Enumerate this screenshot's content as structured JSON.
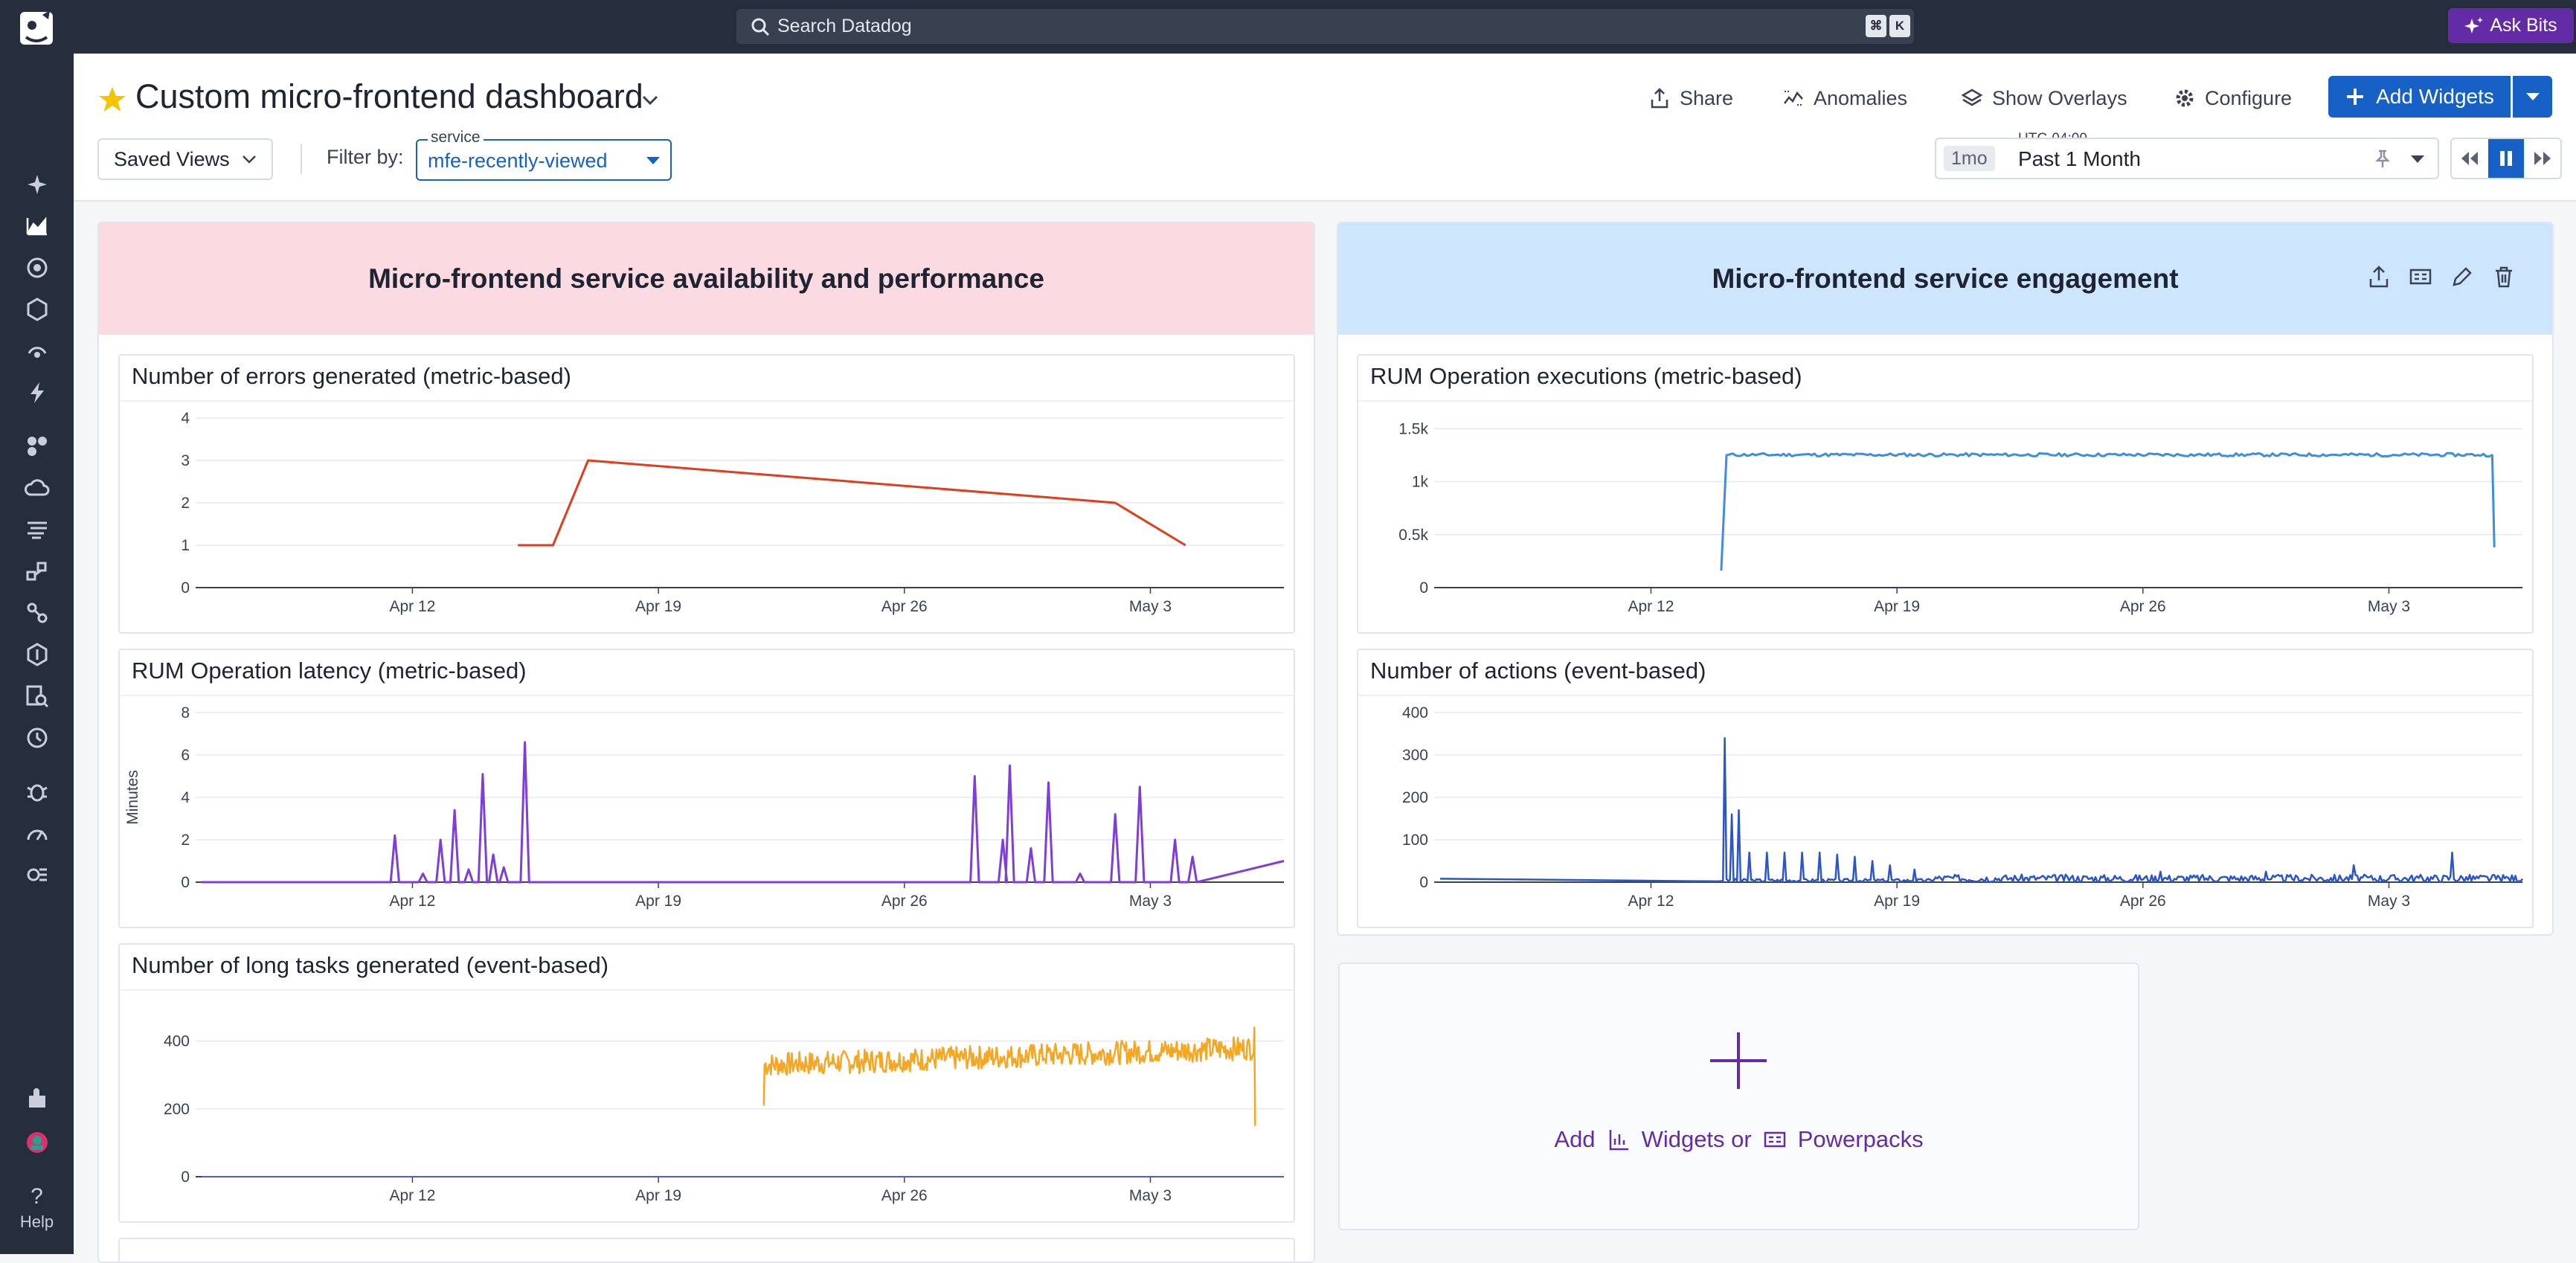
{
  "topbar": {
    "search_placeholder": "Search Datadog",
    "kbd_cmd": "⌘",
    "kbd_k": "K",
    "ask_bits": "Ask Bits"
  },
  "nav": {
    "help": "Help"
  },
  "header": {
    "title": "Custom micro-frontend dashboard",
    "share": "Share",
    "anomalies": "Anomalies",
    "show_overlays": "Show Overlays",
    "configure": "Configure",
    "add_widgets": "Add Widgets",
    "saved_views": "Saved Views",
    "filter_by": "Filter by:",
    "filter_legend": "service",
    "filter_value": "mfe-recently-viewed",
    "timezone": "UTC-04:00",
    "time_chip": "1mo",
    "time_value": "Past 1 Month"
  },
  "colors": {
    "group_left_header": "#fcdae2",
    "group_right_header": "#cde6fd",
    "accent": "#1660c6",
    "purple": "#632ca6"
  },
  "groups": {
    "left": {
      "title": "Micro-frontend service availability and performance"
    },
    "right": {
      "title": "Micro-frontend service engagement"
    }
  },
  "widgets": {
    "errors": {
      "title": "Number of errors generated (metric-based)"
    },
    "latency": {
      "title": "RUM Operation latency (metric-based)",
      "ylabel": "Minutes"
    },
    "longtasks": {
      "title": "Number of long tasks generated (event-based)"
    },
    "executions": {
      "title": "RUM Operation executions (metric-based)"
    },
    "actions": {
      "title": "Number of actions (event-based)"
    }
  },
  "add_placeholder": {
    "add": "Add",
    "widgets": "Widgets or",
    "powerpacks": "Powerpacks"
  },
  "chart_data": [
    {
      "id": "errors",
      "type": "line",
      "color": "#e03c1e",
      "x_ticks": [
        "Apr 12",
        "Apr 19",
        "Apr 26",
        "May 3"
      ],
      "y_ticks": [
        "0",
        "1",
        "2",
        "3",
        "4"
      ],
      "ylim": [
        0,
        4
      ],
      "series": [
        {
          "x": [
            "Apr 15",
            "Apr 16",
            "Apr 17",
            "May 2",
            "May 4"
          ],
          "values": [
            1,
            1,
            3,
            2,
            1
          ]
        }
      ]
    },
    {
      "id": "latency",
      "type": "line",
      "color": "#7f3fd6",
      "x_ticks": [
        "Apr 12",
        "Apr 19",
        "Apr 26",
        "May 3"
      ],
      "y_ticks": [
        "0",
        "2",
        "4",
        "6",
        "8"
      ],
      "ylim": [
        0,
        8
      ],
      "ylabel": "Minutes",
      "peaks": [
        [
          11.5,
          2.2
        ],
        [
          12.3,
          0.4
        ],
        [
          12.8,
          2.0
        ],
        [
          13.2,
          3.4
        ],
        [
          13.6,
          0.6
        ],
        [
          14.0,
          5.1
        ],
        [
          14.3,
          1.3
        ],
        [
          14.6,
          0.7
        ],
        [
          15.2,
          6.6
        ],
        [
          28.0,
          5.0
        ],
        [
          28.8,
          2.0
        ],
        [
          29.0,
          5.5
        ],
        [
          29.6,
          1.6
        ],
        [
          30.1,
          4.7
        ],
        [
          31.0,
          0.4
        ],
        [
          32.0,
          3.2
        ],
        [
          32.7,
          4.5
        ],
        [
          33.7,
          2.0
        ],
        [
          34.2,
          1.2
        ]
      ]
    },
    {
      "id": "longtasks",
      "type": "line",
      "color": "#f5a623",
      "x_ticks": [
        "Apr 12",
        "Apr 19",
        "Apr 26",
        "May 3"
      ],
      "y_ticks": [
        "0",
        "200",
        "400"
      ],
      "ylim": [
        0,
        500
      ],
      "series_range": {
        "start": "Apr 22",
        "end": "May 6",
        "min": 290,
        "max": 440,
        "start_value": 210,
        "end_value": 150
      }
    },
    {
      "id": "executions",
      "type": "line",
      "color": "#3d8de0",
      "x_ticks": [
        "Apr 12",
        "Apr 19",
        "Apr 26",
        "May 3"
      ],
      "y_ticks": [
        "0",
        "0.5k",
        "1k",
        "1.5k"
      ],
      "ylim": [
        0,
        1600
      ],
      "series_range": {
        "start": "Apr 14",
        "end": "May 6",
        "level": 1250,
        "jitter": 30,
        "start_value": 160,
        "end_value": 380
      }
    },
    {
      "id": "actions",
      "type": "line",
      "color": "#2b55c9",
      "x_ticks": [
        "Apr 12",
        "Apr 19",
        "Apr 26",
        "May 3"
      ],
      "y_ticks": [
        "0",
        "100",
        "200",
        "300",
        "400"
      ],
      "ylim": [
        0,
        400
      ],
      "spikes": [
        [
          14.1,
          340
        ],
        [
          14.3,
          160
        ],
        [
          14.5,
          170
        ],
        [
          14.8,
          70
        ],
        [
          15.3,
          70
        ],
        [
          15.8,
          70
        ],
        [
          16.3,
          70
        ],
        [
          16.8,
          70
        ],
        [
          17.3,
          65
        ],
        [
          17.8,
          60
        ],
        [
          18.3,
          50
        ],
        [
          18.8,
          40
        ],
        [
          19.5,
          30
        ],
        [
          26.5,
          25
        ],
        [
          29.5,
          25
        ],
        [
          32.0,
          40
        ],
        [
          34.8,
          70
        ]
      ]
    }
  ]
}
